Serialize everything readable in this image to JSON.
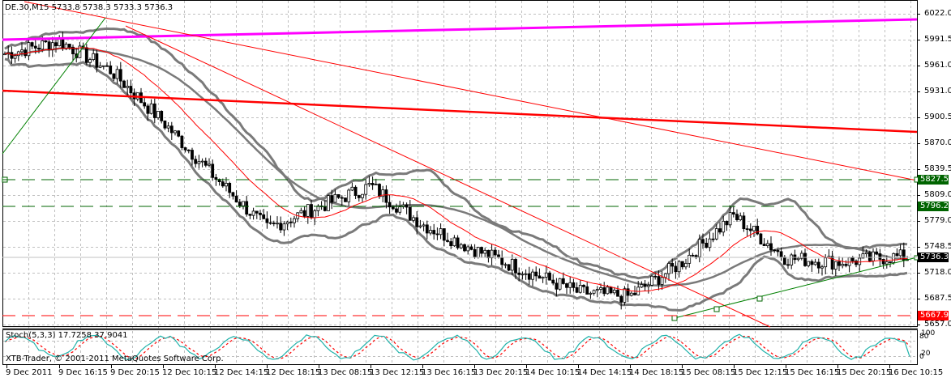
{
  "window": {
    "symbol_title": "DE.30,M15  5733.8 5738.3 5733.3 5736.3",
    "copyright": "XTB-Trader, © 2001-2011 MetaQuotes Software Corp."
  },
  "stochastic": {
    "label": "Stoch(5,3,3) 17.7258 37.9041",
    "axis": [
      "100",
      "80",
      "20",
      "0"
    ]
  },
  "price_tags": {
    "resistance_1": "5827.5",
    "resistance_2": "5796.2",
    "current": "5736.3",
    "support": "5667.9"
  },
  "colors": {
    "background": "#ffffff",
    "grid": "#c0c0c0",
    "bollinger": "#7a7a7a",
    "ma": "#ff0000",
    "trend_red": "#ff0000",
    "trend_magenta": "#ff00ff",
    "trend_green": "#006400",
    "resistance_tag": "#006400",
    "support_tag": "#ff0000",
    "current_tag": "#000000",
    "stoch_main": "#20b2aa",
    "stoch_signal": "#ff0000"
  },
  "chart_data": {
    "type": "candlestick",
    "title": "DE.30,M15",
    "ohlc_last": {
      "open": 5733.8,
      "high": 5738.3,
      "low": 5733.3,
      "close": 5736.3
    },
    "y_ticks": [
      "6022.0",
      "5991.5",
      "5961.0",
      "5931.0",
      "5900.5",
      "5870.0",
      "5839.5",
      "5809.0",
      "5779.0",
      "5748.5",
      "5718.0",
      "5687.5",
      "5657.0"
    ],
    "x_ticks": [
      "9 Dec 2011",
      "9 Dec 16:15",
      "9 Dec 20:15",
      "12 Dec 10:15",
      "12 Dec 14:15",
      "12 Dec 18:15",
      "13 Dec 08:15",
      "13 Dec 12:15",
      "13 Dec 16:15",
      "13 Dec 20:15",
      "14 Dec 10:15",
      "14 Dec 14:15",
      "14 Dec 18:15",
      "15 Dec 08:15",
      "15 Dec 12:15",
      "15 Dec 16:15",
      "15 Dec 20:15",
      "16 Dec 10:15"
    ],
    "ylim": [
      5650,
      6030
    ],
    "horizontal_levels": [
      {
        "price": 5827.5,
        "style": "dashed",
        "color": "green"
      },
      {
        "price": 5796.2,
        "style": "dashed",
        "color": "green"
      },
      {
        "price": 5667.9,
        "style": "dashed",
        "color": "red"
      }
    ],
    "indicators": [
      "Bollinger Bands",
      "Moving Average (red)",
      "Stochastic(5,3,3)"
    ],
    "stochastic": {
      "main": 17.7258,
      "signal": 37.9041,
      "levels": [
        20,
        80
      ]
    },
    "approx_close_path": [
      {
        "t": "9 Dec 2011",
        "price": 5975
      },
      {
        "t": "9 Dec 16:15",
        "price": 5990
      },
      {
        "t": "9 Dec 20:15",
        "price": 5955
      },
      {
        "t": "12 Dec 10:15",
        "price": 5895
      },
      {
        "t": "12 Dec 14:15",
        "price": 5830
      },
      {
        "t": "12 Dec 18:15",
        "price": 5770
      },
      {
        "t": "13 Dec 08:15",
        "price": 5795
      },
      {
        "t": "13 Dec 12:15",
        "price": 5820
      },
      {
        "t": "13 Dec 16:15",
        "price": 5775
      },
      {
        "t": "13 Dec 20:15",
        "price": 5745
      },
      {
        "t": "14 Dec 10:15",
        "price": 5720
      },
      {
        "t": "14 Dec 14:15",
        "price": 5695
      },
      {
        "t": "14 Dec 18:15",
        "price": 5690
      },
      {
        "t": "15 Dec 08:15",
        "price": 5730
      },
      {
        "t": "15 Dec 12:15",
        "price": 5785
      },
      {
        "t": "15 Dec 16:15",
        "price": 5735
      },
      {
        "t": "15 Dec 20:15",
        "price": 5730
      },
      {
        "t": "16 Dec 10:15",
        "price": 5736.3
      }
    ]
  }
}
